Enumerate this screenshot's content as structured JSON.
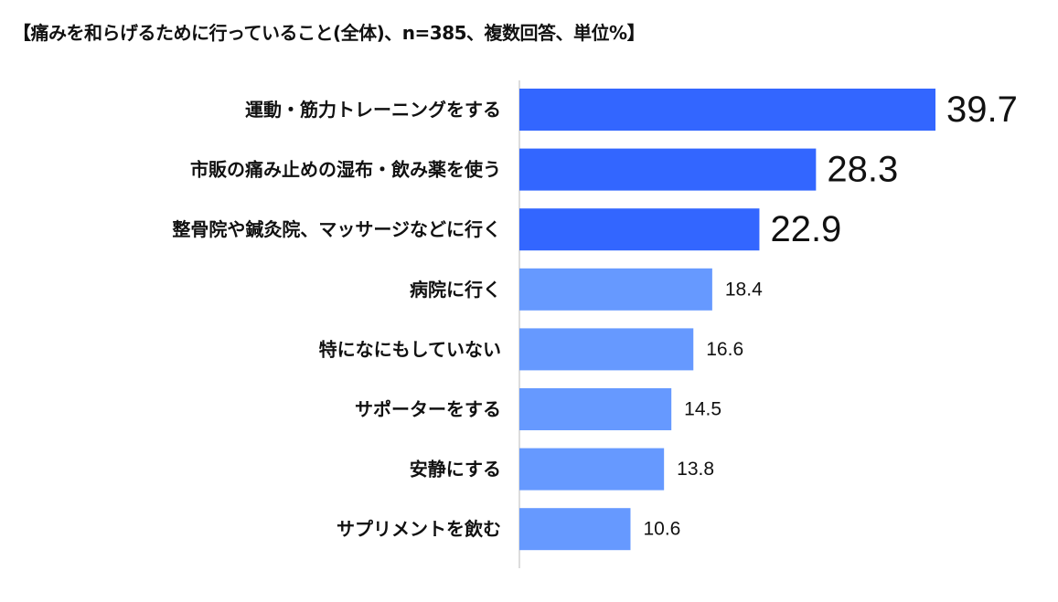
{
  "chart_data": {
    "type": "bar",
    "orientation": "horizontal",
    "title": "【痛みを和らげるために行っていること(全体)、n=385、複数回答、単位%】",
    "unit": "%",
    "n": 385,
    "categories": [
      "運動・筋力トレーニングをする",
      "市販の痛み止めの湿布・飲み薬を使う",
      "整骨院や鍼灸院、マッサージなどに行く",
      "病院に行く",
      "特になにもしていない",
      "サポーターをする",
      "安静にする",
      "サプリメントを飲む"
    ],
    "values": [
      39.7,
      28.3,
      22.9,
      18.4,
      16.6,
      14.5,
      13.8,
      10.6
    ],
    "value_labels": [
      "39.7",
      "28.3",
      "22.9",
      "18.4",
      "16.6",
      "14.5",
      "13.8",
      "10.6"
    ],
    "highlight_top_n": 3,
    "xlim": [
      0,
      45
    ],
    "grid": false,
    "legend": "none",
    "colors": {
      "highlight": "#3366ff",
      "normal": "#6699ff",
      "axis": "#bbbbbb"
    }
  }
}
